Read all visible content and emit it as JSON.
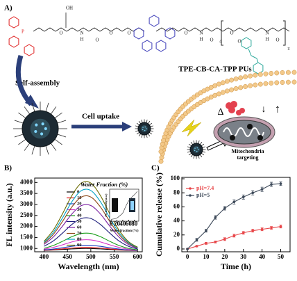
{
  "panel_a": {
    "label": "A)",
    "polymer_name": "TPE-CB-CA-TPP PUs",
    "step1": "Self-assembly",
    "step2": "Cell uptake",
    "target": [
      "Mitochondria",
      "targeting"
    ],
    "symbols": [
      "Δ",
      "↓",
      "↑"
    ],
    "atoms": [
      "P",
      "O",
      "N",
      "H",
      "O",
      "O",
      "O",
      "O",
      "N",
      "H",
      "O",
      "4",
      "O",
      "O",
      "N",
      "H",
      "O",
      "z",
      "OH"
    ]
  },
  "chart_data": [
    {
      "type": "line",
      "panel": "B)",
      "xlabel": "Wavelength (nm)",
      "ylabel": "FL intensity (a.u.)",
      "legend_title": "Water Fraction (%)",
      "x": [
        400,
        420,
        440,
        460,
        480,
        500,
        520,
        540,
        560,
        580,
        600
      ],
      "xlim": [
        380,
        610
      ],
      "xticks": [
        400,
        450,
        500,
        550,
        600
      ],
      "ylim": [
        850,
        4200
      ],
      "yticks": [
        1000,
        1500,
        2000,
        2500,
        3000,
        3500,
        4000
      ],
      "series": [
        {
          "name": "0",
          "color": "#000000",
          "values": [
            914,
            930,
            954,
            980,
            998,
            998,
            980,
            954,
            930,
            914,
            905
          ]
        },
        {
          "name": "10",
          "color": "#e41a1c",
          "values": [
            920,
            945,
            981,
            1020,
            1046,
            1046,
            1020,
            981,
            945,
            920,
            908
          ]
        },
        {
          "name": "20",
          "color": "#1f3fbf",
          "values": [
            934,
            975,
            1035,
            1100,
            1144,
            1144,
            1100,
            1035,
            975,
            934,
            913
          ]
        },
        {
          "name": "30",
          "color": "#d633c8",
          "values": [
            968,
            1049,
            1170,
            1301,
            1388,
            1388,
            1301,
            1170,
            1049,
            968,
            925
          ]
        },
        {
          "name": "40",
          "color": "#1a9e1a",
          "values": [
            1008,
            1138,
            1331,
            1541,
            1681,
            1681,
            1541,
            1331,
            1138,
            1008,
            940
          ]
        },
        {
          "name": "50",
          "color": "#1b1b7a",
          "values": [
            1103,
            1347,
            1709,
            2102,
            2364,
            2364,
            2102,
            1709,
            1347,
            1103,
            975
          ]
        },
        {
          "name": "60",
          "color": "#7a1fa2",
          "values": [
            1184,
            1526,
            2032,
            2582,
            2950,
            2950,
            2582,
            2032,
            1526,
            1184,
            1005
          ]
        },
        {
          "name": "70",
          "color": "#8b4513",
          "values": [
            1238,
            1645,
            2248,
            2903,
            3340,
            3340,
            2903,
            2248,
            1645,
            1238,
            1025
          ]
        },
        {
          "name": "80",
          "color": "#00a3c4",
          "values": [
            1278,
            1734,
            2409,
            3143,
            3633,
            3633,
            3143,
            2409,
            1734,
            1278,
            1040
          ]
        },
        {
          "name": "90",
          "color": "#6b6b00",
          "values": [
            1325,
            1839,
            2598,
            3423,
            3974,
            3974,
            3423,
            2598,
            1839,
            1325,
            1058
          ]
        }
      ]
    },
    {
      "type": "line",
      "xlabel": "Water fraction (%)",
      "ylabel": "FL intensity(a.u.)",
      "x": [
        0,
        10,
        20,
        30,
        40,
        50,
        60,
        70,
        80,
        90
      ],
      "xlim": [
        -5,
        95
      ],
      "xticks": [
        0,
        20,
        40,
        60,
        80
      ],
      "ylim": [
        800,
        4300
      ],
      "series": [
        {
          "color": "#444444",
          "values": [
            1000,
            1050,
            1150,
            1400,
            1700,
            2400,
            3000,
            3400,
            3700,
            4050
          ]
        }
      ]
    },
    {
      "type": "line",
      "panel": "C)",
      "xlabel": "Time (h)",
      "ylabel": "Cumulative release (%)",
      "markers": true,
      "x": [
        0,
        5,
        10,
        15,
        20,
        25,
        30,
        35,
        40,
        45,
        50
      ],
      "xlim": [
        -3,
        55
      ],
      "xticks": [
        0,
        10,
        20,
        30,
        40,
        50
      ],
      "ylim": [
        -4,
        102
      ],
      "yticks": [
        0,
        20,
        40,
        60,
        80,
        100
      ],
      "series": [
        {
          "name": "pH=7.4",
          "color": "#e8474a",
          "values": [
            0,
            4,
            8,
            10,
            14,
            19,
            23,
            26,
            28,
            30,
            32
          ],
          "errors": [
            0,
            1,
            1.5,
            1.5,
            2,
            2,
            2,
            2,
            2,
            2,
            2
          ]
        },
        {
          "name": "pH=5",
          "color": "#3e4a5a",
          "values": [
            0,
            13,
            26,
            45,
            58,
            67,
            74,
            80,
            85,
            92,
            93
          ],
          "errors": [
            0,
            2,
            2,
            2.5,
            2.5,
            3,
            3,
            3,
            3,
            3,
            2.5
          ]
        }
      ]
    }
  ]
}
